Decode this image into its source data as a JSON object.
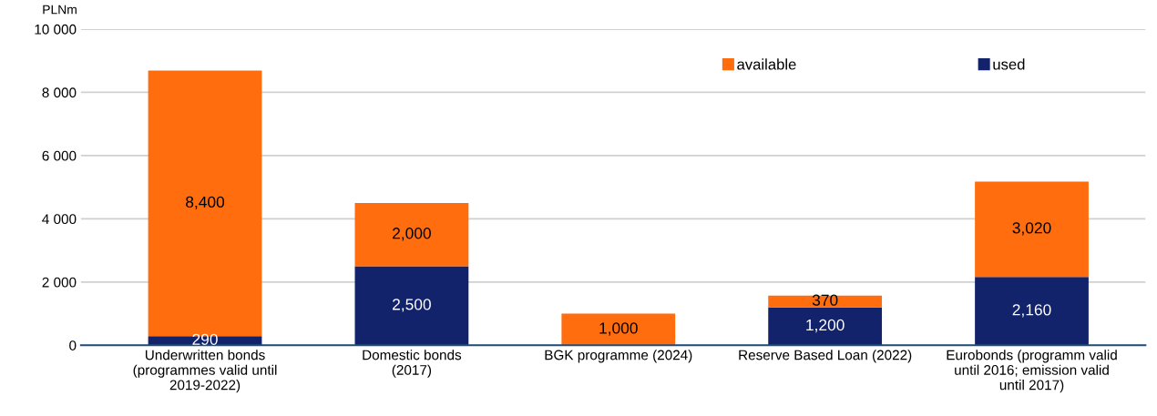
{
  "chart_data": {
    "type": "bar",
    "stacked": true,
    "ylabel": "PLNm",
    "categories": [
      "Underwritten bonds\n(programmes valid until\n2019-2022)",
      "Domestic bonds\n(2017)",
      "BGK programme (2024)",
      "Reserve Based Loan (2022)",
      "Eurobonds (programm valid\nuntil 2016; emission valid\nuntil 2017)"
    ],
    "series": [
      {
        "name": "used",
        "color": "#13236b",
        "values": [
          290,
          2500,
          null,
          1200,
          2160
        ],
        "value_labels": [
          "290",
          "2,500",
          null,
          "1,200",
          "2,160"
        ]
      },
      {
        "name": "available",
        "color": "#ff6d0e",
        "values": [
          8400,
          2000,
          1000,
          370,
          3020
        ],
        "value_labels": [
          "8,400",
          "2,000",
          "1,000",
          "370",
          "3,020"
        ]
      }
    ],
    "ylim": [
      0,
      10000
    ],
    "yticks": [
      0,
      {
        "value": 2000,
        "label": "2 000"
      },
      {
        "value": 4000,
        "label": "4 000"
      },
      {
        "value": 6000,
        "label": "6 000"
      },
      {
        "value": 8000,
        "label": "8 000"
      },
      {
        "value": 10000,
        "label": "10 000"
      }
    ],
    "grid": "y",
    "legend": "top right"
  }
}
